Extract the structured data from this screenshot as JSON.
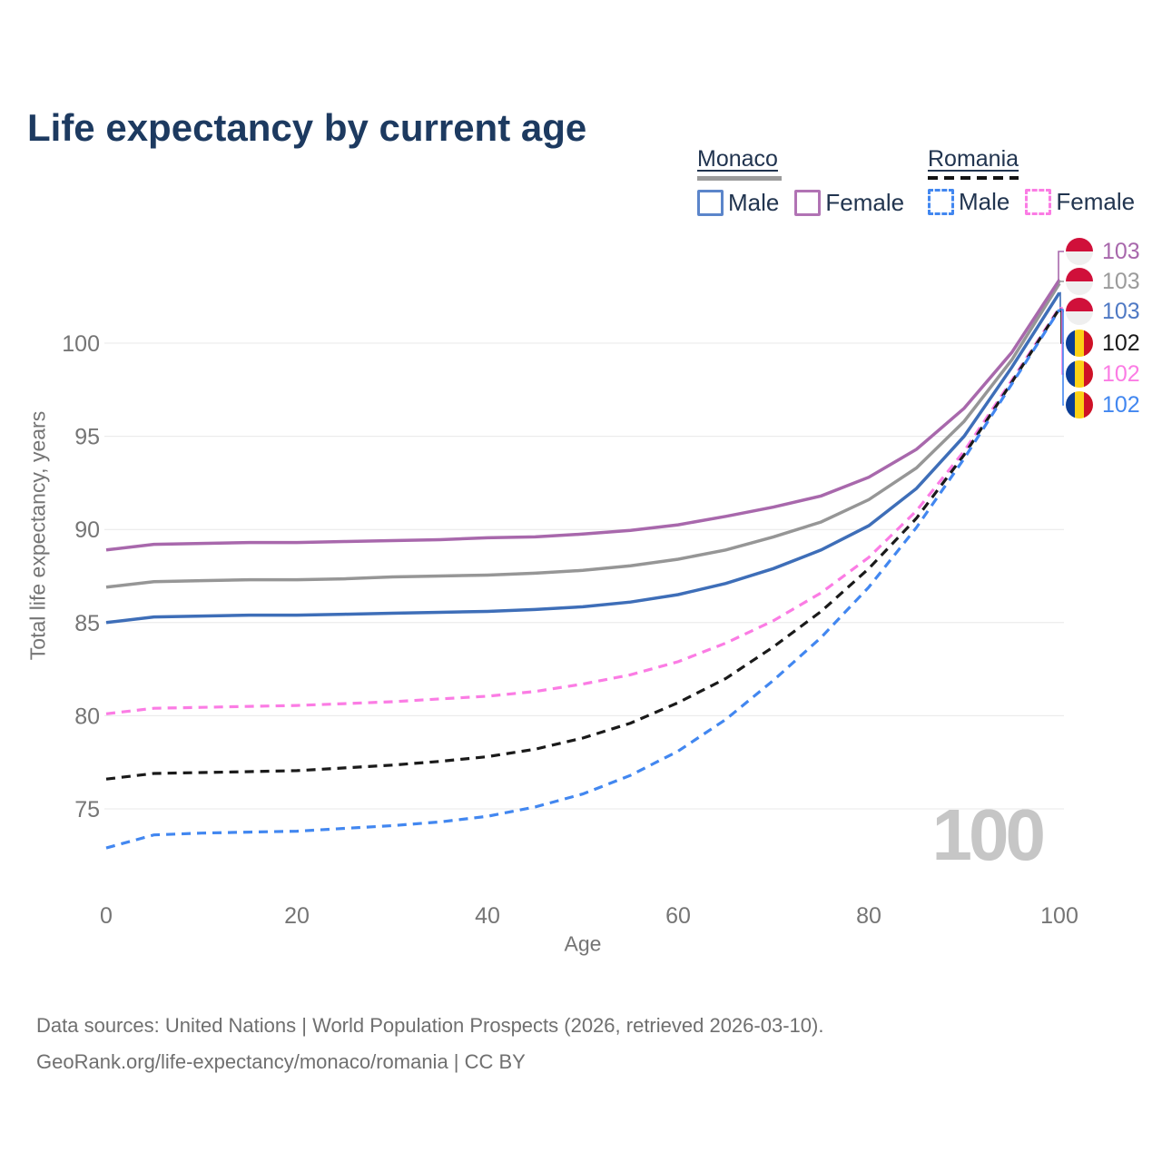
{
  "title": "Life expectancy by current age",
  "legend": {
    "groups": [
      {
        "name": "Monaco",
        "line_style": "solid",
        "line_color": "#9b9b9b",
        "items": [
          {
            "label": "Male",
            "color": "#5b85ca"
          },
          {
            "label": "Female",
            "color": "#b173b4"
          }
        ]
      },
      {
        "name": "Romania",
        "line_style": "dashed",
        "line_color": "#141414",
        "items": [
          {
            "label": "Male",
            "color": "#4287f0"
          },
          {
            "label": "Female",
            "color": "#fb7ce4"
          }
        ]
      }
    ]
  },
  "chart_data": {
    "type": "line",
    "title": "Life expectancy by current age",
    "xlabel": "Age",
    "ylabel": "Total life expectancy, years",
    "x_ticks": [
      0,
      20,
      40,
      60,
      80,
      100
    ],
    "y_ticks": [
      75,
      80,
      85,
      90,
      95,
      100
    ],
    "xlim": [
      0,
      100
    ],
    "ylim": [
      72.5,
      103.5
    ],
    "grid": "horizontal",
    "legend_position": "top-right",
    "ages": [
      0,
      5,
      10,
      15,
      20,
      25,
      30,
      35,
      40,
      45,
      50,
      55,
      60,
      65,
      70,
      75,
      80,
      85,
      90,
      95,
      100
    ],
    "series": [
      {
        "key": "monaco_female",
        "name": "Monaco Female",
        "country": "Monaco",
        "sex": "Female",
        "color": "#a868ac",
        "dash": false,
        "values": [
          88.9,
          89.2,
          89.25,
          89.3,
          89.3,
          89.35,
          89.4,
          89.45,
          89.55,
          89.6,
          89.75,
          89.95,
          90.25,
          90.7,
          91.2,
          91.8,
          92.8,
          94.3,
          96.5,
          99.5,
          103.4
        ]
      },
      {
        "key": "monaco_all",
        "name": "Monaco (both sexes)",
        "country": "Monaco",
        "sex": "All",
        "color": "#969696",
        "dash": false,
        "values": [
          86.9,
          87.2,
          87.25,
          87.3,
          87.3,
          87.35,
          87.45,
          87.5,
          87.55,
          87.65,
          87.8,
          88.05,
          88.4,
          88.9,
          89.6,
          90.4,
          91.6,
          93.3,
          95.8,
          99.1,
          103.2
        ]
      },
      {
        "key": "monaco_male",
        "name": "Monaco Male",
        "country": "Monaco",
        "sex": "Male",
        "color": "#3e6eb8",
        "dash": false,
        "values": [
          85.0,
          85.3,
          85.35,
          85.4,
          85.4,
          85.45,
          85.5,
          85.55,
          85.6,
          85.7,
          85.85,
          86.1,
          86.5,
          87.1,
          87.9,
          88.9,
          90.2,
          92.2,
          95.0,
          98.7,
          102.7
        ]
      },
      {
        "key": "romania_female",
        "name": "Romania Female",
        "country": "Romania",
        "sex": "Female",
        "color": "#fb7ce4",
        "dash": true,
        "values": [
          80.1,
          80.4,
          80.45,
          80.5,
          80.55,
          80.65,
          80.75,
          80.9,
          81.05,
          81.3,
          81.7,
          82.2,
          82.9,
          83.9,
          85.1,
          86.6,
          88.5,
          91.0,
          94.2,
          98.0,
          101.9
        ]
      },
      {
        "key": "romania_all",
        "name": "Romania (both sexes)",
        "country": "Romania",
        "sex": "All",
        "color": "#1a1a1a",
        "dash": true,
        "values": [
          76.6,
          76.9,
          76.95,
          77.0,
          77.05,
          77.2,
          77.35,
          77.55,
          77.8,
          78.2,
          78.8,
          79.6,
          80.7,
          82.0,
          83.7,
          85.6,
          87.9,
          90.6,
          94.0,
          97.9,
          101.85
        ]
      },
      {
        "key": "romania_male",
        "name": "Romania Male",
        "country": "Romania",
        "sex": "Male",
        "color": "#4287f0",
        "dash": true,
        "values": [
          72.9,
          73.6,
          73.7,
          73.75,
          73.8,
          73.95,
          74.1,
          74.3,
          74.6,
          75.1,
          75.8,
          76.8,
          78.1,
          79.8,
          81.9,
          84.2,
          86.9,
          90.1,
          93.8,
          97.8,
          101.8
        ]
      }
    ]
  },
  "end_labels": [
    {
      "series": "monaco_female",
      "value": "103",
      "flag": "monaco",
      "color": "#a868ac"
    },
    {
      "series": "monaco_all",
      "value": "103",
      "flag": "monaco",
      "color": "#9b9b9b"
    },
    {
      "series": "monaco_male",
      "value": "103",
      "flag": "monaco",
      "color": "#4f79c4"
    },
    {
      "series": "romania_all",
      "value": "102",
      "flag": "romania",
      "color": "#1a1a1a"
    },
    {
      "series": "romania_female",
      "value": "102",
      "flag": "romania",
      "color": "#fb7ce4"
    },
    {
      "series": "romania_male",
      "value": "102",
      "flag": "romania",
      "color": "#4287f0"
    }
  ],
  "watermark": {
    "text": "100"
  },
  "footer": {
    "line1": "Data sources: United Nations | World Population Prospects (2026, retrieved 2026-03-10).",
    "line2": "GeoRank.org/life-expectancy/monaco/romania | CC BY"
  }
}
